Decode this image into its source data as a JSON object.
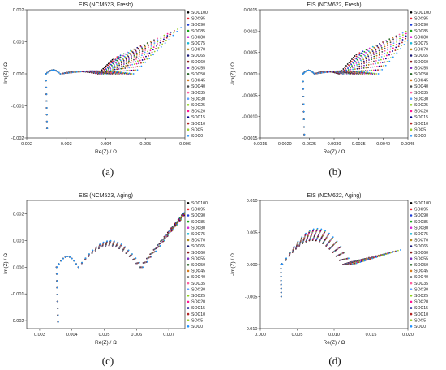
{
  "panels": [
    {
      "caption": "(a)"
    },
    {
      "caption": "(b)"
    },
    {
      "caption": "(c)"
    },
    {
      "caption": "(d)"
    }
  ],
  "chart_data": [
    {
      "type": "scatter",
      "title": "EIS (NCM523, Fresh)",
      "xlabel": "Re(Z) / Ω",
      "ylabel": "-Im(Z) / Ω",
      "xlim": [
        0.002,
        0.006
      ],
      "ylim": [
        -0.002,
        0.002
      ],
      "xticks": [
        0.002,
        0.003,
        0.004,
        0.005,
        0.006
      ],
      "xtick_labels": [
        "0.002",
        "0.003",
        "0.004",
        "0.005",
        "0.006"
      ],
      "yticks": [
        -0.002,
        -0.001,
        0.0,
        0.001,
        0.002
      ],
      "ytick_labels": [
        "-0.002",
        "-0.001",
        "0.000",
        "0.001",
        "0.002"
      ],
      "legend": [
        "SOC100",
        "SOC95",
        "SOC90",
        "SOC85",
        "SOC80",
        "SOC75",
        "SOC70",
        "SOC65",
        "SOC60",
        "SOC55",
        "SOC50",
        "SOC45",
        "SOC40",
        "SOC35",
        "SOC30",
        "SOC25",
        "SOC20",
        "SOC15",
        "SOC10",
        "SOC5",
        "SOC0"
      ],
      "legend_position": "right",
      "model": {
        "r0": 0.00248,
        "tail_y": -0.0017,
        "arc1_x0": 0.00285,
        "arc1_h": 0.00012,
        "arc2_x1_min": 0.0038,
        "arc2_x1_max": 0.0047,
        "arc2_h": 8e-05,
        "diff_len_min": 0.0004,
        "diff_len_max": 0.0012,
        "diff_slope": 1.2
      }
    },
    {
      "type": "scatter",
      "title": "EIS (NCM622, Fresh)",
      "xlabel": "Re(Z) / Ω",
      "ylabel": "-Im(Z) / Ω",
      "xlim": [
        0.0015,
        0.0045
      ],
      "ylim": [
        -0.0015,
        0.0015
      ],
      "xticks": [
        0.0015,
        0.002,
        0.0025,
        0.003,
        0.0035,
        0.004,
        0.0045
      ],
      "xtick_labels": [
        "0.0015",
        "0.0020",
        "0.0025",
        "0.0030",
        "0.0035",
        "0.0040",
        "0.0045"
      ],
      "yticks": [
        -0.0015,
        -0.001,
        -0.0005,
        0.0,
        0.0005,
        0.001,
        0.0015
      ],
      "ytick_labels": [
        "-0.0015",
        "-0.0010",
        "-0.0005",
        "0.0000",
        "0.0005",
        "0.0010",
        "0.0015"
      ],
      "legend": [
        "SOC100",
        "SOC95",
        "SOC90",
        "SOC85",
        "SOC80",
        "SOC75",
        "SOC70",
        "SOC65",
        "SOC60",
        "SOC55",
        "SOC50",
        "SOC45",
        "SOC40",
        "SOC35",
        "SOC30",
        "SOC25",
        "SOC20",
        "SOC15",
        "SOC10",
        "SOC5",
        "SOC0"
      ],
      "legend_position": "right",
      "model": {
        "r0": 0.00236,
        "tail_y": -0.00142,
        "arc1_x0": 0.0026,
        "arc1_h": 8e-05,
        "arc2_x1_min": 0.0031,
        "arc2_x1_max": 0.0039,
        "arc2_h": 6e-05,
        "diff_len_min": 0.00035,
        "diff_len_max": 0.0009,
        "diff_slope": 1.3
      }
    },
    {
      "type": "scatter",
      "title": "EIS (NCM523, Aging)",
      "xlabel": "Re(Z) / Ω",
      "ylabel": "-Im(Z) / Ω",
      "xlim": [
        0.0026,
        0.0075
      ],
      "ylim": [
        -0.0023,
        0.0025
      ],
      "xticks": [
        0.003,
        0.004,
        0.005,
        0.006,
        0.007
      ],
      "xtick_labels": [
        "0.003",
        "0.004",
        "0.005",
        "0.006",
        "0.007"
      ],
      "yticks": [
        -0.002,
        -0.001,
        0.0,
        0.001,
        0.002
      ],
      "ytick_labels": [
        "-0.002",
        "-0.001",
        "0.000",
        "0.001",
        "0.002"
      ],
      "legend": [
        "SOC100",
        "SOC95",
        "SOC90",
        "SOC85",
        "SOC80",
        "SOC75",
        "SOC70",
        "SOC65",
        "SOC60",
        "SOC55",
        "SOC50",
        "SOC45",
        "SOC40",
        "SOC35",
        "SOC30",
        "SOC25",
        "SOC20",
        "SOC15",
        "SOC10",
        "SOC5",
        "SOC0"
      ],
      "legend_position": "right",
      "model": {
        "r0": 0.00352,
        "tail_y": -0.00205,
        "arc1_x0": 0.0042,
        "arc1_h": 0.0004,
        "arc2_x1_min": 0.0061,
        "arc2_x1_max": 0.0062,
        "arc2_h": 0.0009,
        "diff_len_min": 0.0013,
        "diff_len_max": 0.0016,
        "diff_slope": 1.5
      }
    },
    {
      "type": "scatter",
      "title": "EIS (NCM622, Aging)",
      "xlabel": "Re(Z) / Ω",
      "ylabel": "-Im(Z) / Ω",
      "xlim": [
        0.0,
        0.02
      ],
      "ylim": [
        -0.01,
        0.01
      ],
      "xticks": [
        0.0,
        0.005,
        0.01,
        0.015,
        0.02
      ],
      "xtick_labels": [
        "0.000",
        "0.005",
        "0.010",
        "0.015",
        "0.020"
      ],
      "yticks": [
        -0.01,
        -0.005,
        0.0,
        0.005,
        0.01
      ],
      "ytick_labels": [
        "-0.010",
        "-0.005",
        "0.000",
        "0.005",
        "0.010"
      ],
      "legend": [
        "SOC100",
        "SOC95",
        "SOC90",
        "SOC85",
        "SOC80",
        "SOC75",
        "SOC70",
        "SOC65",
        "SOC60",
        "SOC55",
        "SOC50",
        "SOC45",
        "SOC40",
        "SOC35",
        "SOC30",
        "SOC25",
        "SOC20",
        "SOC15",
        "SOC10",
        "SOC5",
        "SOC0"
      ],
      "legend_position": "right",
      "model": {
        "r0": 0.0028,
        "tail_y": -0.005,
        "arc1_x0": 0.003,
        "arc1_h": 0.0001,
        "arc2_x1_min": 0.0112,
        "arc2_x1_max": 0.0125,
        "arc2_h_min": 0.0038,
        "arc2_h_max": 0.0056,
        "diff_len_min": 0.0012,
        "diff_len_max": 0.0065,
        "diff_slope": 0.35
      }
    }
  ],
  "series_colors": [
    "#000000",
    "#e8232f",
    "#1f3fd8",
    "#16a316",
    "#d62ad6",
    "#19b7d6",
    "#b08b1a",
    "#1a1a7a",
    "#8a1a1a",
    "#7a2fbf",
    "#2a6a2a",
    "#d67a1a",
    "#4a4a4a",
    "#ff5fa0",
    "#5f9fff",
    "#8fd61a",
    "#ff1493",
    "#00008b",
    "#b22222",
    "#9acd32",
    "#1e90ff"
  ]
}
